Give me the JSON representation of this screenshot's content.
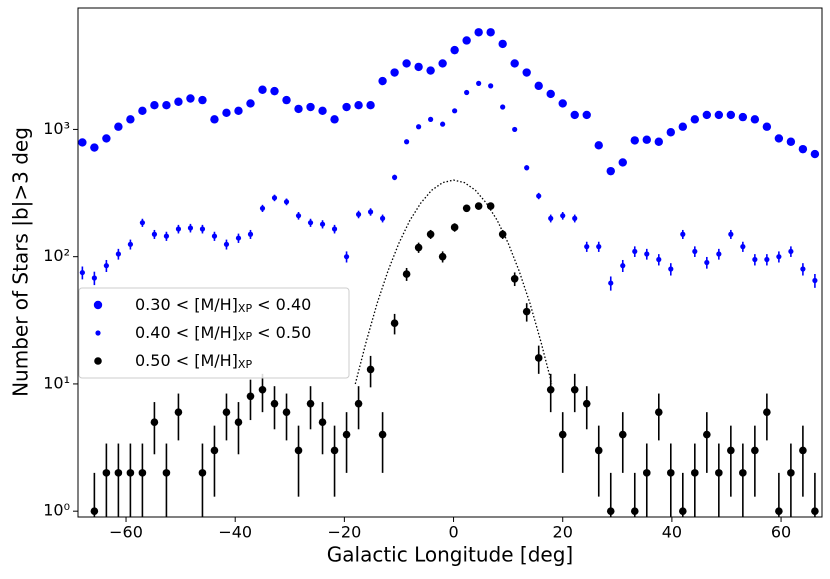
{
  "chart_data": {
    "type": "scatter",
    "xlabel": "Galactic Longitude [deg]",
    "ylabel": "Number of Stars   |b|>3 deg",
    "xlim": [
      -68.8,
      67.5
    ],
    "ylim": [
      0.9,
      9000
    ],
    "log_y": true,
    "xticks": [
      {
        "value": -60,
        "label": "−60"
      },
      {
        "value": -40,
        "label": "−40"
      },
      {
        "value": -20,
        "label": "−20"
      },
      0,
      20,
      40,
      60
    ],
    "yticks": [
      {
        "value": 1,
        "label": "10⁰"
      },
      {
        "value": 10,
        "label": "10¹"
      },
      {
        "value": 100,
        "label": "10²"
      },
      {
        "value": 1000,
        "label": "10³"
      }
    ],
    "legend": "center left",
    "series": [
      {
        "name": "0.30 < [M/H]XP < 0.40",
        "color": "#0000ff",
        "x": [
          -68,
          -65.8,
          -63.6,
          -61.4,
          -59.2,
          -57,
          -54.8,
          -52.6,
          -50.4,
          -48.2,
          -46,
          -43.8,
          -41.6,
          -39.4,
          -37.2,
          -35,
          -32.8,
          -30.6,
          -28.4,
          -26.2,
          -24,
          -21.8,
          -19.6,
          -17.4,
          -15.2,
          -13,
          -10.8,
          -8.6,
          -6.4,
          -4.2,
          -2,
          0.2,
          2.4,
          4.6,
          6.8,
          9,
          11.2,
          13.4,
          15.6,
          17.8,
          20,
          22.2,
          24.4,
          26.6,
          28.8,
          31,
          33.2,
          35.4,
          37.6,
          39.8,
          42,
          44.2,
          46.4,
          48.6,
          50.8,
          53,
          55.2,
          57.4,
          59.6,
          61.8,
          64,
          66.2
        ],
        "values": [
          790,
          720,
          850,
          1050,
          1200,
          1400,
          1550,
          1550,
          1650,
          1750,
          1700,
          1200,
          1350,
          1400,
          1600,
          2050,
          2000,
          1700,
          1450,
          1500,
          1400,
          1200,
          1500,
          1550,
          1550,
          2400,
          2800,
          3300,
          3100,
          2900,
          3300,
          4200,
          5000,
          5800,
          5800,
          4700,
          3300,
          2800,
          2200,
          1900,
          1600,
          1300,
          1300,
          750,
          470,
          550,
          820,
          830,
          800,
          950,
          1050,
          1200,
          1300,
          1300,
          1300,
          1250,
          1200,
          1050,
          850,
          800,
          700,
          640
        ]
      },
      {
        "name": "0.40 < [M/H]XP < 0.50",
        "color": "#0000ff",
        "x": [
          -68,
          -65.8,
          -63.6,
          -61.4,
          -59.2,
          -57,
          -54.8,
          -52.6,
          -50.4,
          -48.2,
          -46,
          -43.8,
          -41.6,
          -39.4,
          -37.2,
          -35,
          -32.8,
          -30.6,
          -28.4,
          -26.2,
          -24,
          -21.8,
          -19.6,
          -17.4,
          -15.2,
          -13,
          -10.8,
          -8.6,
          -6.4,
          -4.2,
          -2,
          0.2,
          2.4,
          4.6,
          6.8,
          9,
          11.2,
          13.4,
          15.6,
          17.8,
          20,
          22.2,
          24.4,
          26.6,
          28.8,
          31,
          33.2,
          35.4,
          37.6,
          39.8,
          42,
          44.2,
          46.4,
          48.6,
          50.8,
          53,
          55.2,
          57.4,
          59.6,
          61.8,
          64,
          66.2
        ],
        "values": [
          75,
          68,
          85,
          105,
          125,
          185,
          150,
          145,
          165,
          168,
          165,
          145,
          125,
          140,
          150,
          240,
          290,
          270,
          210,
          185,
          180,
          165,
          100,
          215,
          225,
          200,
          420,
          800,
          1050,
          1200,
          1100,
          1400,
          1950,
          2300,
          2200,
          1500,
          1000,
          500,
          300,
          200,
          210,
          200,
          120,
          120,
          62,
          85,
          110,
          105,
          95,
          80,
          150,
          110,
          90,
          105,
          150,
          120,
          95,
          95,
          100,
          110,
          80,
          65
        ],
        "errors": [
          8.7,
          8.2,
          9.2,
          10.2,
          11.2,
          13.6,
          12.2,
          12,
          12.8,
          13,
          12.8,
          12,
          11.2,
          11.8,
          12.2,
          15.5,
          17,
          16.4,
          14.5,
          13.6,
          13.4,
          12.8,
          10,
          14.7,
          15,
          14.1,
          20.5,
          28.3,
          32.4,
          34.6,
          33.2,
          37.4,
          44.2,
          48,
          46.9,
          38.7,
          31.6,
          22.4,
          17.3,
          14.1,
          14.5,
          14.1,
          11,
          11,
          7.9,
          9.2,
          10.5,
          10.2,
          9.7,
          8.9,
          12.2,
          10.5,
          9.5,
          10.2,
          12.2,
          11,
          9.7,
          9.7,
          10,
          10.5,
          8.9,
          8.1
        ]
      },
      {
        "name": "0.50 < [M/H]XP",
        "color": "#000000",
        "x": [
          -65.8,
          -63.6,
          -61.4,
          -59.2,
          -57,
          -54.8,
          -52.6,
          -50.4,
          -46,
          -43.8,
          -41.6,
          -39.4,
          -37.2,
          -35,
          -32.8,
          -30.6,
          -28.4,
          -26.2,
          -24,
          -21.8,
          -19.6,
          -17.4,
          -15.2,
          -13,
          -10.8,
          -8.6,
          -6.4,
          -4.2,
          -2,
          0.2,
          2.4,
          4.6,
          6.8,
          9,
          11.2,
          13.4,
          15.6,
          17.8,
          20,
          22.2,
          24.4,
          26.6,
          28.8,
          31,
          33.2,
          35.4,
          37.6,
          39.8,
          42,
          44.2,
          46.4,
          48.6,
          50.8,
          53,
          55.2,
          57.4,
          59.6,
          61.8,
          64,
          66.2
        ],
        "values": [
          1,
          2,
          2,
          2,
          2,
          5,
          2,
          6,
          2,
          3,
          6,
          5,
          8,
          9,
          7,
          6,
          3,
          7,
          5,
          3,
          4,
          7,
          13,
          4,
          30,
          73,
          118,
          150,
          100,
          170,
          240,
          250,
          250,
          150,
          67,
          37,
          16,
          9,
          4,
          9,
          7,
          3,
          1,
          4,
          1,
          2,
          6,
          2,
          1,
          2,
          4,
          2,
          3,
          2,
          3,
          6,
          1,
          2,
          3,
          1
        ],
        "errors": [
          1,
          1.4,
          1.4,
          1.4,
          1.4,
          2.2,
          1.4,
          2.4,
          1.4,
          1.7,
          2.4,
          2.2,
          2.8,
          3,
          2.6,
          2.4,
          1.7,
          2.6,
          2.2,
          1.7,
          2,
          2.6,
          3.6,
          2,
          5.5,
          8.5,
          10.9,
          12.2,
          10,
          13,
          15.5,
          15.8,
          15.8,
          12.2,
          8.2,
          6.1,
          4,
          3,
          2,
          3,
          2.6,
          1.7,
          1,
          2,
          1,
          1.4,
          2.4,
          1.4,
          1,
          1.4,
          2,
          1.4,
          1.7,
          1.4,
          1.7,
          2.4,
          1,
          1.4,
          1.7,
          1
        ]
      }
    ],
    "curve": {
      "color": "#000000",
      "style": "dotted",
      "x": [
        -18,
        -16,
        -14,
        -12,
        -10,
        -8,
        -6,
        -4,
        -2,
        0,
        2,
        4,
        6,
        8,
        10,
        12,
        14,
        16,
        18
      ],
      "values": [
        10,
        21.5,
        43,
        77.5,
        128,
        193,
        264,
        333,
        382,
        400,
        382,
        333,
        264,
        193,
        128,
        77.5,
        43,
        21.5,
        10
      ]
    }
  }
}
